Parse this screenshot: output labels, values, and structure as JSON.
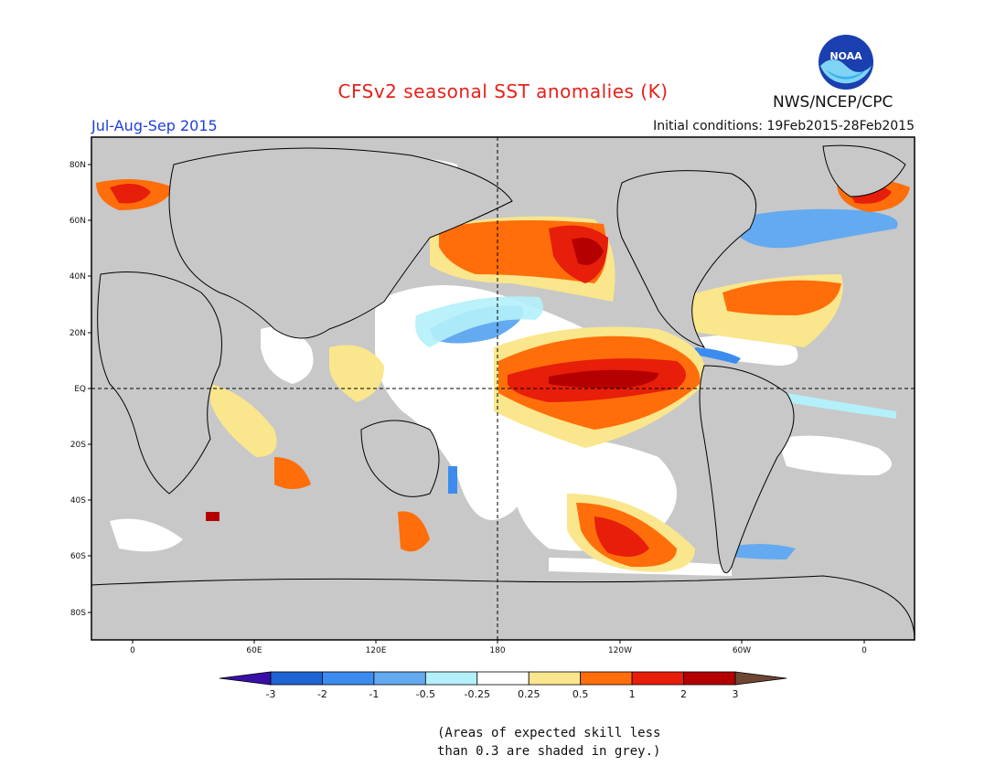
{
  "header": {
    "title": "CFSv2 seasonal SST anomalies (K)",
    "period": "Jul-Aug-Sep 2015",
    "initial_conditions": "Initial conditions: 19Feb2015-28Feb2015",
    "agency": "NWS/NCEP/CPC",
    "logo_text": "NOAA"
  },
  "map": {
    "lat_labels": [
      "80N",
      "60N",
      "40N",
      "20N",
      "EQ",
      "20S",
      "40S",
      "60S",
      "80S"
    ],
    "lon_labels": [
      "0",
      "60E",
      "120E",
      "180",
      "120W",
      "60W",
      "0"
    ],
    "land_color": "#c8c8c8",
    "grey_mask_color": "#c8c8c8"
  },
  "colorbar": {
    "labels": [
      "-3",
      "-2",
      "-1",
      "-0.5",
      "-0.25",
      "0.25",
      "0.5",
      "1",
      "2",
      "3"
    ],
    "colors": [
      "#3a0fa8",
      "#1e64d2",
      "#3c8cf0",
      "#64aaf0",
      "#b4f0fa",
      "#ffffff",
      "#fae68c",
      "#ff6e0a",
      "#e61e0a",
      "#b40000",
      "#6e4632"
    ]
  },
  "footnote": {
    "line1": "(Areas of expected skill less",
    "line2": "than 0.3 are shaded in grey.)"
  }
}
